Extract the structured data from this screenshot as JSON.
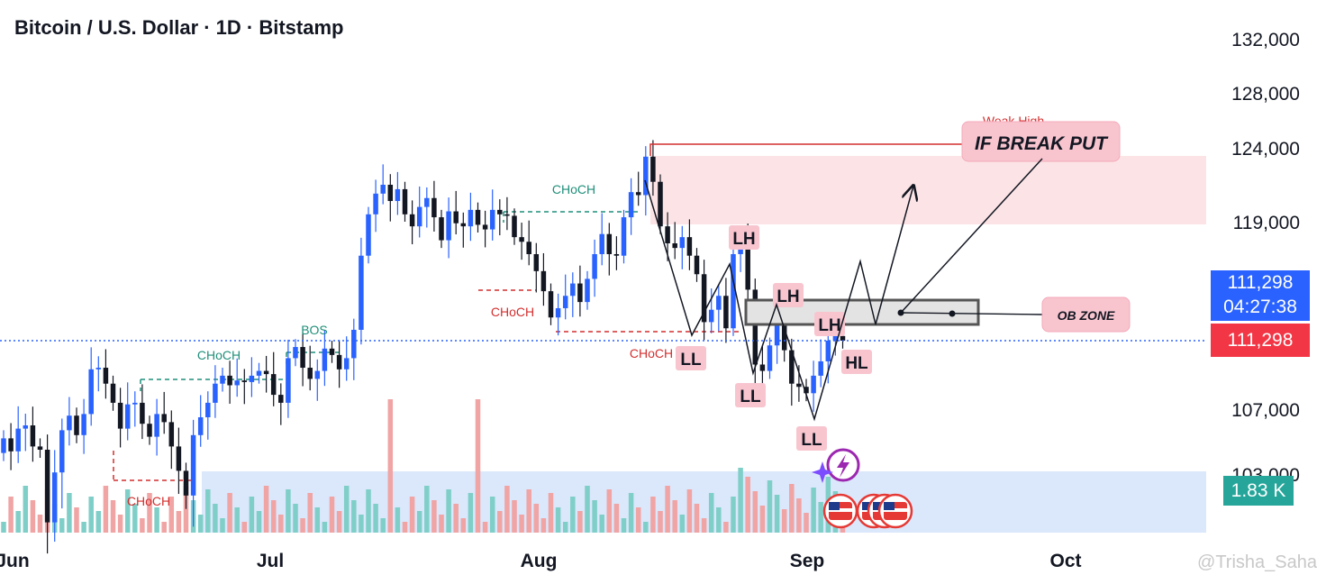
{
  "header": {
    "title": "Bitcoin / U.S. Dollar · 1D · Bitstamp"
  },
  "watermark": "@Trisha_Saha",
  "price_boxes": {
    "price": "111,298",
    "countdown": "04:27:38",
    "last": "111,298",
    "volume": "1.83 K"
  },
  "colors": {
    "up": "#2962ff",
    "down": "#131722",
    "vol_up": "#7fcfc8",
    "vol_down": "#f0a4a4",
    "resistance": "#fce4e6",
    "volume_zone": "#dbe7fb"
  },
  "chart_data": {
    "type": "candlestick",
    "title": "Bitcoin / U.S. Dollar · 1D · Bitstamp",
    "xlabel": "",
    "ylabel": "",
    "yticks": [
      132000,
      128000,
      124000,
      119000,
      107000,
      103000
    ],
    "ytick_labels": [
      "132,000",
      "128,000",
      "124,000",
      "119,000",
      "107,000",
      "103,000"
    ],
    "xticks": [
      "Jun",
      "Jul",
      "Aug",
      "Sep",
      "Oct"
    ],
    "current_price": 111298,
    "current_volume": "1.83 K",
    "zones": [
      {
        "name": "resistance",
        "low": 119000,
        "high": 123700
      },
      {
        "name": "OB ZONE",
        "low": 110900,
        "high": 112600
      }
    ],
    "candles_close": [
      105200,
      104400,
      105800,
      106000,
      104700,
      104500,
      101200,
      103100,
      105700,
      106600,
      105400,
      106700,
      109500,
      109600,
      108600,
      107400,
      105800,
      107300,
      107400,
      106100,
      105300,
      106700,
      106200,
      104700,
      103200,
      102200,
      105400,
      106500,
      107400,
      108600,
      109100,
      108500,
      108800,
      108700,
      109100,
      109400,
      109200,
      107900,
      107400,
      110200,
      110900,
      109600,
      108900,
      109400,
      110800,
      110400,
      109500,
      110200,
      112000,
      116800,
      119500,
      120900,
      121500,
      120400,
      121200,
      119500,
      118700,
      120000,
      120600,
      119300,
      117800,
      119700,
      118900,
      118700,
      119800,
      118800,
      118500,
      119800,
      119500,
      119400,
      118000,
      117700,
      116900,
      115800,
      114500,
      112800,
      113400,
      114200,
      115000,
      113800,
      115300,
      116900,
      118200,
      116900,
      116800,
      119300,
      121000,
      120800,
      123400,
      121700,
      118700,
      117600,
      117300,
      118000,
      116800,
      115600,
      112500,
      113300,
      114200,
      112100,
      116900,
      117500,
      114600,
      109800,
      109400,
      111000,
      112400,
      110700,
      108600,
      108400,
      108000,
      109100,
      110000,
      111300,
      111600,
      111300
    ],
    "annotations": [
      {
        "text": "CHoCH",
        "color": "teal"
      },
      {
        "text": "CHoCH",
        "color": "red"
      },
      {
        "text": "BOS",
        "color": "teal"
      },
      {
        "text": "CHoCH",
        "color": "teal"
      },
      {
        "text": "CHoCH",
        "color": "red"
      },
      {
        "text": "CHoCH",
        "color": "red"
      },
      {
        "text": "Weak High",
        "color": "red"
      }
    ],
    "swing_labels": [
      "LL",
      "LH",
      "LH",
      "LL",
      "LH",
      "HL",
      "LL"
    ],
    "callouts": [
      "IF BREAK PUT",
      "OB ZONE"
    ]
  }
}
